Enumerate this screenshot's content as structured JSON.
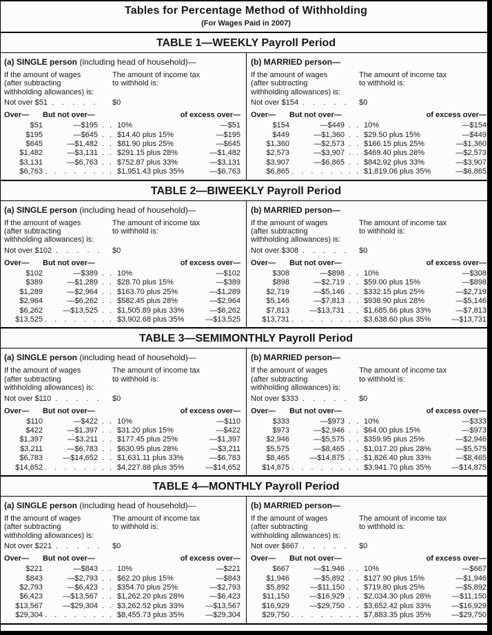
{
  "page": {
    "title": "Tables for Percentage Method of Withholding",
    "subtitle": "(For Wages Paid in 2007)"
  },
  "labels": {
    "single_bold": "(a) SINGLE person",
    "single_rest": " (including head of household)—",
    "married_bold": "(b) MARRIED person—",
    "wages_line1": "If the amount of wages",
    "wages_line2": "(after subtracting",
    "wages_line3": "withholding allowances) is:",
    "tax_line1": "The amount of income tax",
    "tax_line2": "to withhold is:",
    "zero": "$0",
    "over": "Over—",
    "but_not_over": "But not over—",
    "of_excess_over": "of excess over—",
    "notover_dots": ". . . . .",
    "row_dots": ". .",
    "long_dots": ". . . . . ."
  },
  "tables": [
    {
      "title": "TABLE 1—WEEKLY Payroll Period",
      "single": {
        "not_over": "Not over $51",
        "rows": [
          {
            "over": "$51",
            "but_not_over": "—$195",
            "tax": "10%",
            "excess": "—$51"
          },
          {
            "over": "$195",
            "but_not_over": "—$645",
            "tax": "$14.40 plus 15%",
            "excess": "—$195"
          },
          {
            "over": "$645",
            "but_not_over": "—$1,482",
            "tax": "$81.90 plus 25%",
            "excess": "—$645"
          },
          {
            "over": "$1,482",
            "but_not_over": "—$3,131",
            "tax": "$291.15 plus 28%",
            "excess": "—$1,482"
          },
          {
            "over": "$3,131",
            "but_not_over": "—$6,763",
            "tax": "$752.87 plus 33%",
            "excess": "—$3,131"
          },
          {
            "over": "$6,763",
            "but_not_over": "",
            "tax": "$1,951.43 plus 35%",
            "excess": "—$6,763"
          }
        ]
      },
      "married": {
        "not_over": "Not over $154",
        "rows": [
          {
            "over": "$154",
            "but_not_over": "—$449",
            "tax": "10%",
            "excess": "—$154"
          },
          {
            "over": "$449",
            "but_not_over": "—$1,360",
            "tax": "$29.50 plus 15%",
            "excess": "—$449"
          },
          {
            "over": "$1,360",
            "but_not_over": "—$2,573",
            "tax": "$166.15 plus 25%",
            "excess": "—$1,360"
          },
          {
            "over": "$2,573",
            "but_not_over": "—$3,907",
            "tax": "$469.40 plus 28%",
            "excess": "—$2,573"
          },
          {
            "over": "$3,907",
            "but_not_over": "—$6,865",
            "tax": "$842.92 plus 33%",
            "excess": "—$3,907"
          },
          {
            "over": "$6,865",
            "but_not_over": "",
            "tax": "$1,819.06 plus 35%",
            "excess": "—$6,865"
          }
        ]
      }
    },
    {
      "title": "TABLE 2—BIWEEKLY Payroll Period",
      "single": {
        "not_over": "Not over $102",
        "rows": [
          {
            "over": "$102",
            "but_not_over": "—$389",
            "tax": "10%",
            "excess": "—$102"
          },
          {
            "over": "$389",
            "but_not_over": "—$1,289",
            "tax": "$28.70 plus 15%",
            "excess": "—$389"
          },
          {
            "over": "$1,289",
            "but_not_over": "—$2,964",
            "tax": "$163.70 plus 25%",
            "excess": "—$1,289"
          },
          {
            "over": "$2,964",
            "but_not_over": "—$6,262",
            "tax": "$582.45 plus 28%",
            "excess": "—$2,964"
          },
          {
            "over": "$6,262",
            "but_not_over": "—$13,525",
            "tax": "$1,505.89 plus 33%",
            "excess": "—$6,262"
          },
          {
            "over": "$13,525",
            "but_not_over": "",
            "tax": "$3,902.68 plus 35%",
            "excess": "—$13,525"
          }
        ]
      },
      "married": {
        "not_over": "Not over $308",
        "rows": [
          {
            "over": "$308",
            "but_not_over": "—$898",
            "tax": "10%",
            "excess": "—$308"
          },
          {
            "over": "$898",
            "but_not_over": "—$2,719",
            "tax": "$59.00 plus 15%",
            "excess": "—$898"
          },
          {
            "over": "$2,719",
            "but_not_over": "—$5,146",
            "tax": "$332.15 plus 25%",
            "excess": "—$2,719"
          },
          {
            "over": "$5,146",
            "but_not_over": "—$7,813",
            "tax": "$938.90 plus 28%",
            "excess": "—$5,146"
          },
          {
            "over": "$7,813",
            "but_not_over": "—$13,731",
            "tax": "$1,685.66 plus 33%",
            "excess": "—$7,813"
          },
          {
            "over": "$13,731",
            "but_not_over": "",
            "tax": "$3,638.60 plus 35%",
            "excess": "—$13,731"
          }
        ]
      }
    },
    {
      "title": "TABLE 3—SEMIMONTHLY Payroll Period",
      "single": {
        "not_over": "Not over $110",
        "rows": [
          {
            "over": "$110",
            "but_not_over": "—$422",
            "tax": "10%",
            "excess": "—$110"
          },
          {
            "over": "$422",
            "but_not_over": "—$1,397",
            "tax": "$31.20 plus 15%",
            "excess": "—$422"
          },
          {
            "over": "$1,397",
            "but_not_over": "—$3,211",
            "tax": "$177.45 plus 25%",
            "excess": "—$1,397"
          },
          {
            "over": "$3,211",
            "but_not_over": "—$6,783",
            "tax": "$630.95 plus 28%",
            "excess": "—$3,211"
          },
          {
            "over": "$6,783",
            "but_not_over": "—$14,652",
            "tax": "$1,631.11 plus 33%",
            "excess": "—$6,783"
          },
          {
            "over": "$14,652",
            "but_not_over": "",
            "tax": "$4,227.88 plus 35%",
            "excess": "—$14,652"
          }
        ]
      },
      "married": {
        "not_over": "Not over $333",
        "rows": [
          {
            "over": "$333",
            "but_not_over": "—$973",
            "tax": "10%",
            "excess": "—$333"
          },
          {
            "over": "$973",
            "but_not_over": "—$2,946",
            "tax": "$64.00 plus 15%",
            "excess": "—$973"
          },
          {
            "over": "$2,946",
            "but_not_over": "—$5,575",
            "tax": "$359.95 plus 25%",
            "excess": "—$2,946"
          },
          {
            "over": "$5,575",
            "but_not_over": "—$8,465",
            "tax": "$1,017.20 plus 28%",
            "excess": "—$5,575"
          },
          {
            "over": "$8,465",
            "but_not_over": "—$14,875",
            "tax": "$1,826.40 plus 33%",
            "excess": "—$8,465"
          },
          {
            "over": "$14,875",
            "but_not_over": "",
            "tax": "$3,941.70 plus 35%",
            "excess": "—$14,875"
          }
        ]
      }
    },
    {
      "title": "TABLE 4—MONTHLY Payroll Period",
      "single": {
        "not_over": "Not over $221",
        "rows": [
          {
            "over": "$221",
            "but_not_over": "—$843",
            "tax": "10%",
            "excess": "—$221"
          },
          {
            "over": "$843",
            "but_not_over": "—$2,793",
            "tax": "$62.20 plus 15%",
            "excess": "—$843"
          },
          {
            "over": "$2,793",
            "but_not_over": "—$6,423",
            "tax": "$354.70 plus 25%",
            "excess": "—$2,793"
          },
          {
            "over": "$6,423",
            "but_not_over": "—$13,567",
            "tax": "$1,262.20 plus 28%",
            "excess": "—$6,423"
          },
          {
            "over": "$13,567",
            "but_not_over": "—$29,304",
            "tax": "$3,262.52 plus 33%",
            "excess": "—$13,567"
          },
          {
            "over": "$29,304",
            "but_not_over": "",
            "tax": "$8,455.73 plus 35%",
            "excess": "—$29,304"
          }
        ]
      },
      "married": {
        "not_over": "Not over $667",
        "rows": [
          {
            "over": "$667",
            "but_not_over": "—$1,946",
            "tax": "10%",
            "excess": "—$667"
          },
          {
            "over": "$1,946",
            "but_not_over": "—$5,892",
            "tax": "$127.90 plus 15%",
            "excess": "—$1,946"
          },
          {
            "over": "$5,892",
            "but_not_over": "—$11,150",
            "tax": "$719.80 plus 25%",
            "excess": "—$5,892"
          },
          {
            "over": "$11,150",
            "but_not_over": "—$16,929",
            "tax": "$2,034.30 plus 28%",
            "excess": "—$11,150"
          },
          {
            "over": "$16,929",
            "but_not_over": "—$29,750",
            "tax": "$3,652.42 plus 33%",
            "excess": "—$16,929"
          },
          {
            "over": "$29,750",
            "but_not_over": "",
            "tax": "$7,883.35 plus 35%",
            "excess": "—$29,750"
          }
        ]
      }
    }
  ]
}
